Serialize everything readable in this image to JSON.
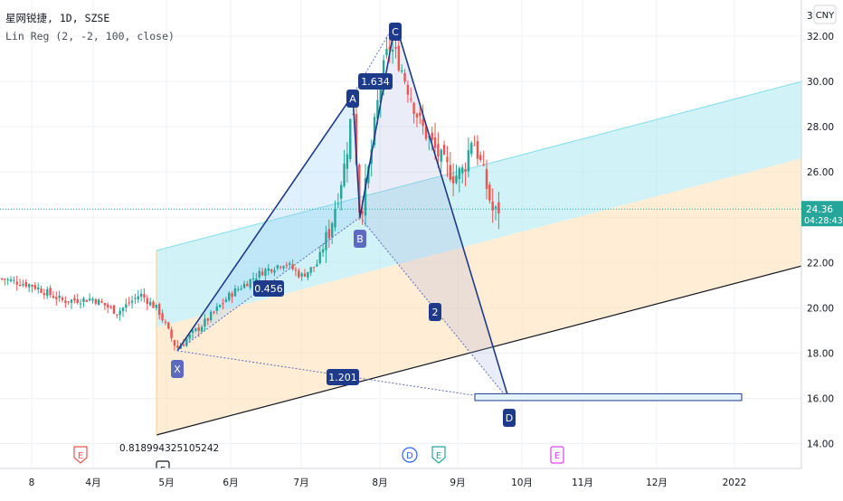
{
  "header": {
    "symbol": "星网锐捷",
    "interval": "1D",
    "exchange": "SZSE",
    "indicator": "Lin Reg (2, -2, 100, close)",
    "currency": "CNY"
  },
  "price_axis": {
    "ticks": [
      "14.00",
      "16.00",
      "18.00",
      "20.00",
      "22.00",
      "24.00",
      "26.00",
      "28.00",
      "30.00",
      "32.00",
      "3"
    ],
    "last_price": "24.36",
    "countdown": "04:28:43"
  },
  "time_axis": {
    "ticks": [
      "8",
      "4月",
      "5月",
      "6月",
      "7月",
      "8月",
      "9月",
      "10月",
      "11月",
      "12月",
      "2022"
    ]
  },
  "colors": {
    "up": "#26a69a",
    "down": "#ef5350",
    "pattern": "#1e3a8a",
    "upper_band": "#b2ebf2",
    "lower_band": "#ffe0b2",
    "last_price": "#26a69a"
  },
  "chart_data": {
    "type": "candlestick",
    "y_range": [
      12.9,
      33.6
    ],
    "points": [
      {
        "label": "X",
        "date": "5月初",
        "price": 18.1
      },
      {
        "label": "A",
        "date": "7月下旬",
        "price": 29.4
      },
      {
        "label": "B",
        "date": "7月底",
        "price": 24.0
      },
      {
        "label": "C",
        "date": "8月初",
        "price": 32.6
      },
      {
        "label": "D",
        "date": "9月下旬",
        "price": 15.9
      }
    ],
    "ratios": [
      "1.634",
      "0.456",
      "2",
      "1.201",
      "0.818994325105242"
    ],
    "target_zone": {
      "low": 15.9,
      "high": 16.2
    },
    "events": [
      {
        "label": "E",
        "kind": "earnings-red"
      },
      {
        "label": "E",
        "kind": "earnings-dark"
      },
      {
        "label": "D",
        "kind": "dividend-blue"
      },
      {
        "label": "E",
        "kind": "earnings-green"
      },
      {
        "label": "E",
        "kind": "earnings-purple"
      }
    ]
  }
}
